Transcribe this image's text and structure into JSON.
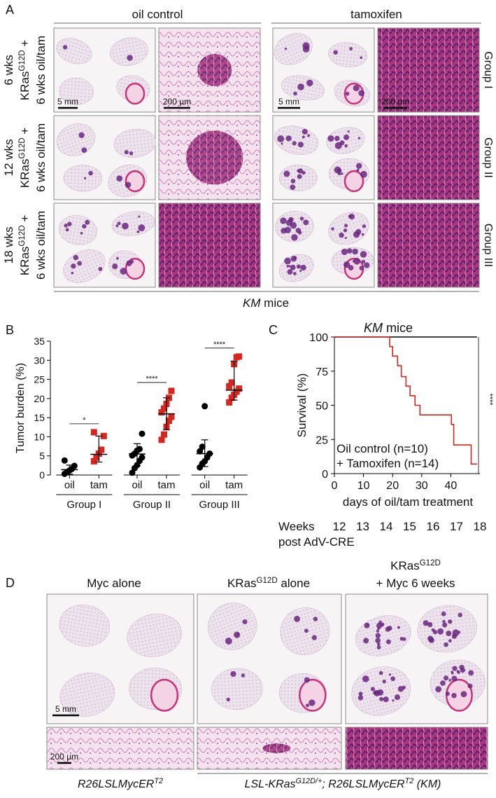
{
  "panel_a": {
    "label": "A",
    "column_headers": [
      "oil control",
      "tamoxifen"
    ],
    "row_labels": [
      [
        [
          {
            "text": "6 wks"
          }
        ],
        [
          {
            "text": "KRas"
          },
          {
            "text": "G12D",
            "style": "sup"
          },
          {
            "text": " +"
          }
        ],
        [
          {
            "text": "6 wks oil/tam"
          }
        ]
      ],
      [
        [
          {
            "text": "12 wks"
          }
        ],
        [
          {
            "text": "KRas"
          },
          {
            "text": "G12D",
            "style": "sup"
          },
          {
            "text": " +"
          }
        ],
        [
          {
            "text": "6 wks oil/tam"
          }
        ]
      ],
      [
        [
          {
            "text": "18 wks"
          }
        ],
        [
          {
            "text": "KRas"
          },
          {
            "text": "G12D",
            "style": "sup"
          },
          {
            "text": " +"
          }
        ],
        [
          {
            "text": "6 wks oil/tam"
          }
        ]
      ]
    ],
    "group_labels": [
      "Group I",
      "Group II",
      "Group III"
    ],
    "scale_bars": [
      "5 mm",
      "200 µm",
      "5 mm",
      "200 µm"
    ],
    "footer": [
      {
        "text": "KM",
        "style": "italic"
      },
      {
        "text": " mice"
      }
    ]
  },
  "chart_data": [
    {
      "type": "dot_plot",
      "panel_label": "B",
      "ylabel": "Tumor burden (%)",
      "ylim": [
        0,
        35
      ],
      "yticks": [
        0,
        5,
        10,
        15,
        20,
        25,
        30,
        35
      ],
      "categories": [
        "Group I",
        "Group II",
        "Group III"
      ],
      "series": [
        {
          "name": "oil",
          "color": "#000000",
          "marker": "circle",
          "values": [
            [
              0.3,
              0.8,
              1.2,
              1.6,
              2.4,
              3.8
            ],
            [
              0.6,
              1.8,
              2.6,
              3.7,
              4.6,
              5.1,
              5.6,
              6.4,
              6.8,
              10.8
            ],
            [
              2.0,
              3.0,
              3.6,
              4.6,
              5.6,
              6.2,
              7.4,
              18.0
            ]
          ],
          "center": [
            1.4,
            5.5,
            5.6
          ],
          "lower": [
            0.2,
            2.4,
            2.2
          ],
          "upper": [
            2.6,
            8.2,
            9.2
          ]
        },
        {
          "name": "tam",
          "color": "#d7261e",
          "marker": "square",
          "values": [
            [
              3.6,
              4.6,
              5.6,
              6.6,
              10.2,
              11.2
            ],
            [
              9.2,
              10.6,
              12.6,
              14.2,
              15.2,
              16.4,
              17.4,
              18.6,
              20.2,
              22.0
            ],
            [
              19.0,
              20.2,
              21.0,
              21.8,
              22.6,
              23.2,
              24.2,
              29.0,
              30.8,
              31.0
            ]
          ],
          "center": [
            5.4,
            16.0,
            22.2
          ],
          "lower": [
            3.4,
            11.8,
            19.6
          ],
          "upper": [
            10.2,
            20.2,
            29.8
          ]
        }
      ],
      "significance": [
        "*",
        "****",
        "****"
      ]
    },
    {
      "type": "step_line",
      "panel_label": "C",
      "title": [
        {
          "text": "KM",
          "style": "italic"
        },
        {
          "text": " mice"
        }
      ],
      "xlabel": "days of oil/tam treatment",
      "ylabel": "Survival (%)",
      "xlim": [
        0,
        50
      ],
      "xticks": [
        0,
        10,
        20,
        30,
        40
      ],
      "ylim": [
        0,
        100
      ],
      "yticks": [
        0,
        25,
        50,
        75,
        100
      ],
      "series": [
        {
          "name": "Oil control (n=10)",
          "color": "#000000",
          "x": [
            0,
            49
          ],
          "values": [
            100,
            100
          ]
        },
        {
          "name": "+ Tamoxifen (n=14)",
          "color": "#d7261e",
          "x": [
            0,
            19,
            20,
            21.7,
            23,
            24.6,
            26,
            27.7,
            29.4,
            40.2,
            41,
            47,
            49
          ],
          "values": [
            100,
            93,
            86,
            79,
            71,
            64,
            57,
            50,
            43,
            36,
            21,
            7,
            7
          ]
        }
      ],
      "significance": "****",
      "weeks_label": "Weeks",
      "weeks": [
        12,
        13,
        14,
        15,
        16,
        17,
        18
      ],
      "weeks_sublabel": "post AdV-CRE"
    }
  ],
  "panel_d": {
    "label": "D",
    "headers": [
      [
        [
          {
            "text": "Myc alone"
          }
        ]
      ],
      [
        [
          {
            "text": "KRas"
          },
          {
            "text": "G12D",
            "style": "sup"
          },
          {
            "text": " alone"
          }
        ]
      ],
      [
        [
          {
            "text": "KRas"
          },
          {
            "text": "G12D",
            "style": "sup"
          }
        ],
        [
          {
            "text": "+ Myc 6 weeks"
          }
        ]
      ]
    ],
    "scale_bars": [
      "5 mm",
      "200 µm"
    ],
    "footers": [
      [
        {
          "text": "R26LSLMycER"
        },
        {
          "text": "T2",
          "style": "sup"
        }
      ],
      [
        {
          "text": "LSL-KRas"
        },
        {
          "text": "G12D/+",
          "style": "sup"
        },
        {
          "text": "; R26LSLMycER"
        },
        {
          "text": "T2",
          "style": "sup"
        },
        {
          "text": " (KM)"
        }
      ]
    ]
  }
}
